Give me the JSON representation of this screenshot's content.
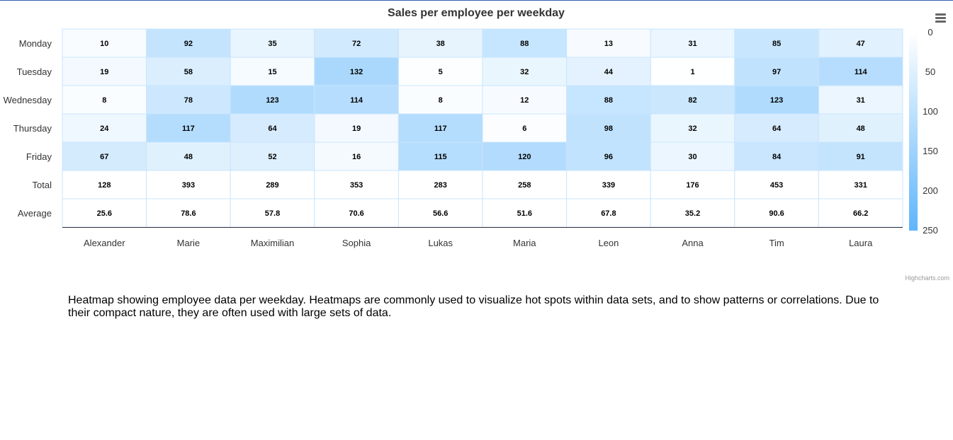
{
  "chart_data": {
    "type": "heatmap",
    "title": "Sales per employee per weekday",
    "x_categories": [
      "Alexander",
      "Marie",
      "Maximilian",
      "Sophia",
      "Lukas",
      "Maria",
      "Leon",
      "Anna",
      "Tim",
      "Laura"
    ],
    "y_categories": [
      "Monday",
      "Tuesday",
      "Wednesday",
      "Thursday",
      "Friday",
      "Total",
      "Average"
    ],
    "values": [
      [
        10,
        92,
        35,
        72,
        38,
        88,
        13,
        31,
        85,
        47
      ],
      [
        19,
        58,
        15,
        132,
        5,
        32,
        44,
        1,
        97,
        114
      ],
      [
        8,
        78,
        123,
        114,
        8,
        12,
        88,
        82,
        123,
        31
      ],
      [
        24,
        117,
        64,
        19,
        117,
        6,
        98,
        32,
        64,
        48
      ],
      [
        67,
        48,
        52,
        16,
        115,
        120,
        96,
        30,
        84,
        91
      ],
      [
        128,
        393,
        289,
        353,
        283,
        258,
        339,
        176,
        453,
        331
      ],
      [
        25.6,
        78.6,
        57.8,
        70.6,
        56.6,
        51.6,
        67.8,
        35.2,
        90.6,
        66.2
      ]
    ],
    "colored_rows": 5,
    "color_axis": {
      "min": 0,
      "max": 250,
      "min_color": "#ffffff",
      "max_color": "#5eb5fb",
      "tick_labels": [
        "0",
        "50",
        "100",
        "150",
        "200",
        "250"
      ],
      "placement": "right"
    }
  },
  "credits": "Highcharts.com",
  "description": "Heatmap showing employee data per weekday. Heatmaps are commonly used to visualize hot spots within data sets, and to show patterns or correlations. Due to their compact nature, they are often used with large sets of data.",
  "menu": {
    "icon": "hamburger-menu-icon"
  }
}
